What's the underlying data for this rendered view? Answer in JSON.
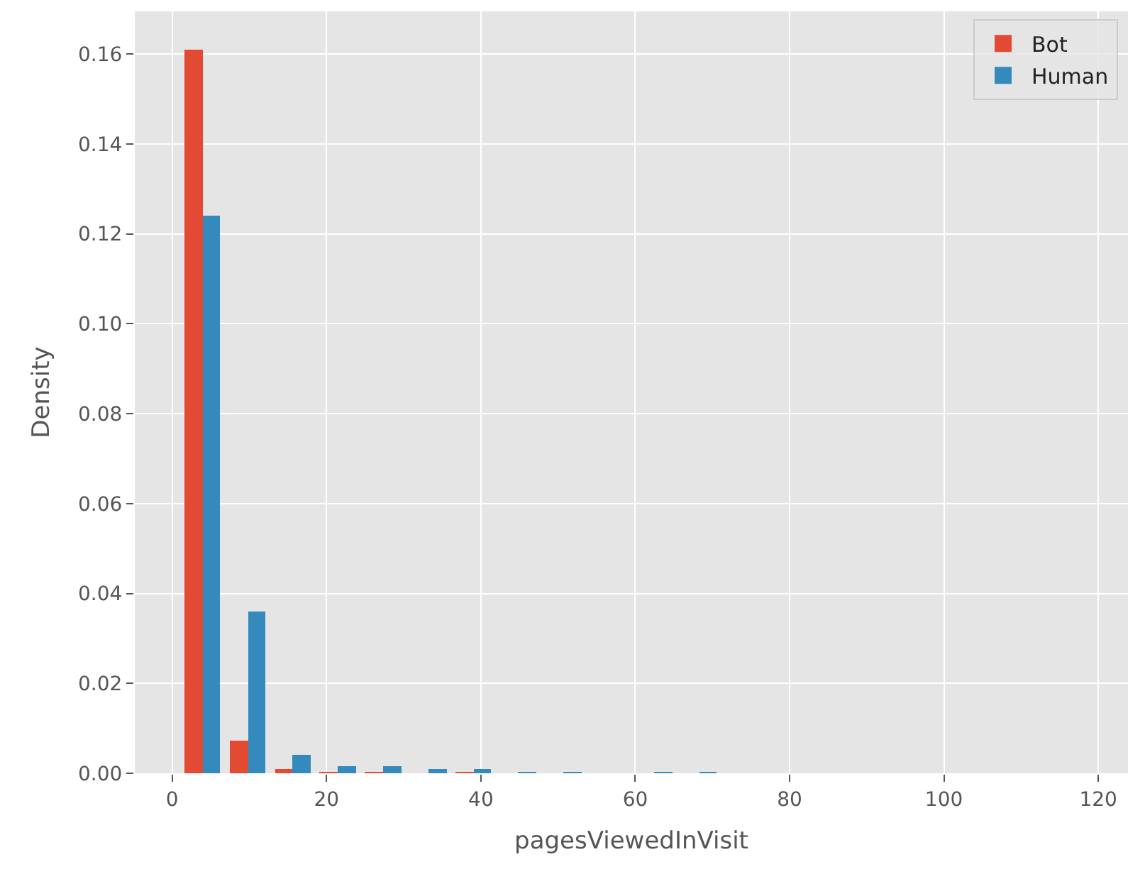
{
  "chart_data": {
    "type": "histogram",
    "xlabel": "pagesViewedInVisit",
    "ylabel": "Density",
    "bins": [
      1,
      6.85,
      12.7,
      18.55,
      24.4,
      30.25,
      36.1,
      41.95,
      47.8,
      53.65,
      59.5,
      65.35,
      71.2,
      77.05,
      82.9,
      88.75,
      94.6,
      100.45,
      106.3,
      112.15,
      118
    ],
    "series": [
      {
        "name": "Bot",
        "color": "#e24a33",
        "values": [
          0.161,
          0.0072,
          0.0009,
          0.0003,
          0.0003,
          0,
          0.0003,
          0,
          0,
          0,
          0,
          0,
          0,
          0,
          0,
          0,
          0,
          0,
          0,
          0
        ]
      },
      {
        "name": "Human",
        "color": "#348abd",
        "values": [
          0.124,
          0.036,
          0.0041,
          0.0017,
          0.0017,
          0.0009,
          0.0009,
          0.0002,
          0.0002,
          0,
          0.0002,
          0.0002,
          0,
          0,
          0,
          0,
          0,
          0,
          0,
          0
        ]
      }
    ],
    "xlim": [
      -4.85,
      123.85
    ],
    "ylim": [
      0,
      0.1695
    ],
    "xticks": [
      0,
      20,
      40,
      60,
      80,
      100,
      120
    ],
    "yticks": [
      {
        "value": 0,
        "label": "0.00"
      },
      {
        "value": 0.02,
        "label": "0.02"
      },
      {
        "value": 0.04,
        "label": "0.04"
      },
      {
        "value": 0.06,
        "label": "0.06"
      },
      {
        "value": 0.08,
        "label": "0.08"
      },
      {
        "value": 0.1,
        "label": "0.10"
      },
      {
        "value": 0.12,
        "label": "0.12"
      },
      {
        "value": 0.14,
        "label": "0.14"
      },
      {
        "value": 0.16,
        "label": "0.16"
      }
    ],
    "grid": true,
    "legend": "top right"
  }
}
